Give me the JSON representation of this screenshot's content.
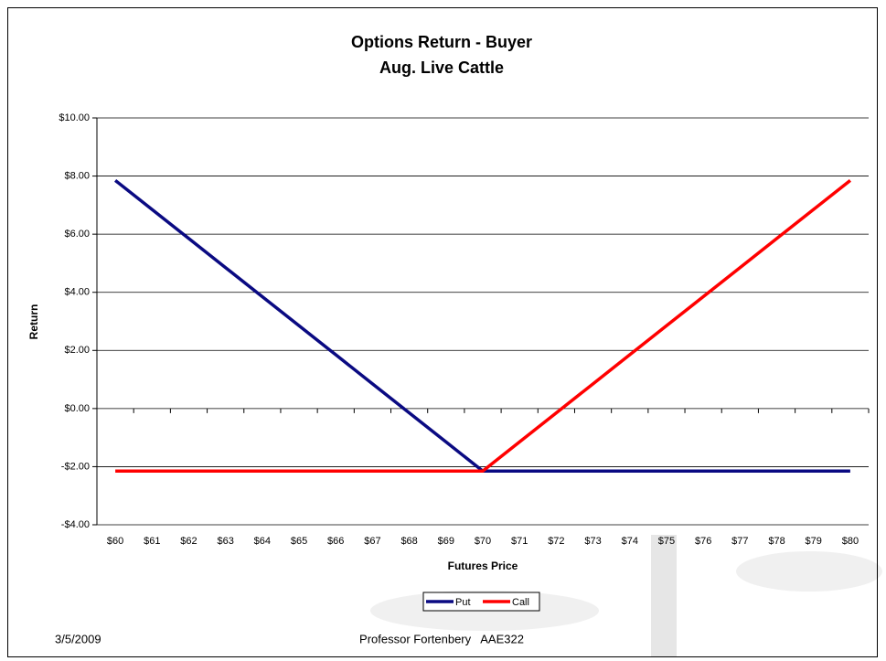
{
  "chart_data": {
    "type": "line",
    "title": "Options Return - Buyer",
    "subtitle": "Aug. Live Cattle",
    "x_label": "Futures Price",
    "y_label": "Return",
    "categories": [
      "$60",
      "$61",
      "$62",
      "$63",
      "$64",
      "$65",
      "$66",
      "$67",
      "$68",
      "$69",
      "$70",
      "$71",
      "$72",
      "$73",
      "$74",
      "$75",
      "$76",
      "$77",
      "$78",
      "$79",
      "$80"
    ],
    "series": [
      {
        "name": "Put",
        "color": "#0a0a82",
        "values": [
          7.85,
          6.85,
          5.85,
          4.85,
          3.85,
          2.85,
          1.85,
          0.85,
          -0.15,
          -1.15,
          -2.15,
          -2.15,
          -2.15,
          -2.15,
          -2.15,
          -2.15,
          -2.15,
          -2.15,
          -2.15,
          -2.15,
          -2.15
        ]
      },
      {
        "name": "Call",
        "color": "#ff0000",
        "values": [
          -2.15,
          -2.15,
          -2.15,
          -2.15,
          -2.15,
          -2.15,
          -2.15,
          -2.15,
          -2.15,
          -2.15,
          -2.15,
          -1.15,
          -0.15,
          0.85,
          1.85,
          2.85,
          3.85,
          4.85,
          5.85,
          6.85,
          7.85
        ]
      }
    ],
    "ylim": [
      -4,
      10
    ],
    "yticks": [
      {
        "value": -4,
        "label": "-$4.00"
      },
      {
        "value": -2,
        "label": "-$2.00"
      },
      {
        "value": 0,
        "label": "$0.00"
      },
      {
        "value": 2,
        "label": "$2.00"
      },
      {
        "value": 4,
        "label": "$4.00"
      },
      {
        "value": 6,
        "label": "$6.00"
      },
      {
        "value": 8,
        "label": "$8.00"
      },
      {
        "value": 10,
        "label": "$10.00"
      }
    ],
    "grid": true,
    "legend": "bottom"
  },
  "footer": {
    "date": "3/5/2009",
    "text": "Professor Fortenbery   AAE322"
  }
}
